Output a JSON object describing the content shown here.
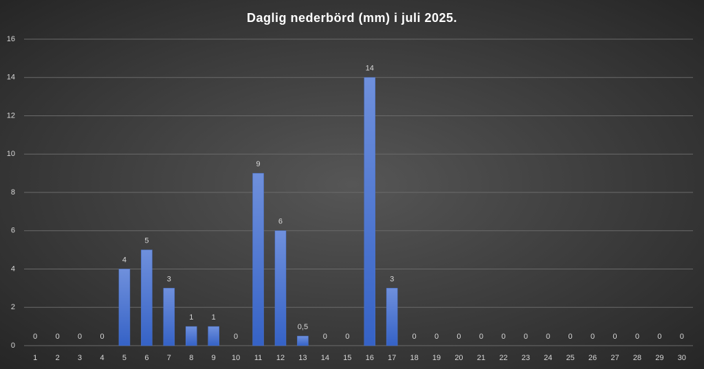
{
  "chart_data": {
    "type": "bar",
    "title": "Daglig nederbörd (mm) i juli 2025.",
    "categories": [
      "1",
      "2",
      "3",
      "4",
      "5",
      "6",
      "7",
      "8",
      "9",
      "10",
      "11",
      "12",
      "13",
      "14",
      "15",
      "16",
      "17",
      "18",
      "19",
      "20",
      "21",
      "22",
      "23",
      "24",
      "25",
      "26",
      "27",
      "28",
      "29",
      "30"
    ],
    "values": [
      0,
      0,
      0,
      0,
      4,
      5,
      3,
      1,
      1,
      0,
      9,
      6,
      0.5,
      0,
      0,
      14,
      3,
      0,
      0,
      0,
      0,
      0,
      0,
      0,
      0,
      0,
      0,
      0,
      0,
      0
    ],
    "value_labels": [
      "0",
      "0",
      "0",
      "0",
      "4",
      "5",
      "3",
      "1",
      "1",
      "0",
      "9",
      "6",
      "0,5",
      "0",
      "0",
      "14",
      "3",
      "0",
      "0",
      "0",
      "0",
      "0",
      "0",
      "0",
      "0",
      "0",
      "0",
      "0",
      "0",
      "0"
    ],
    "color": "#4a74d0",
    "ylim": [
      0,
      16
    ],
    "yticks": [
      0,
      2,
      4,
      6,
      8,
      10,
      12,
      14,
      16
    ],
    "grid": true
  }
}
